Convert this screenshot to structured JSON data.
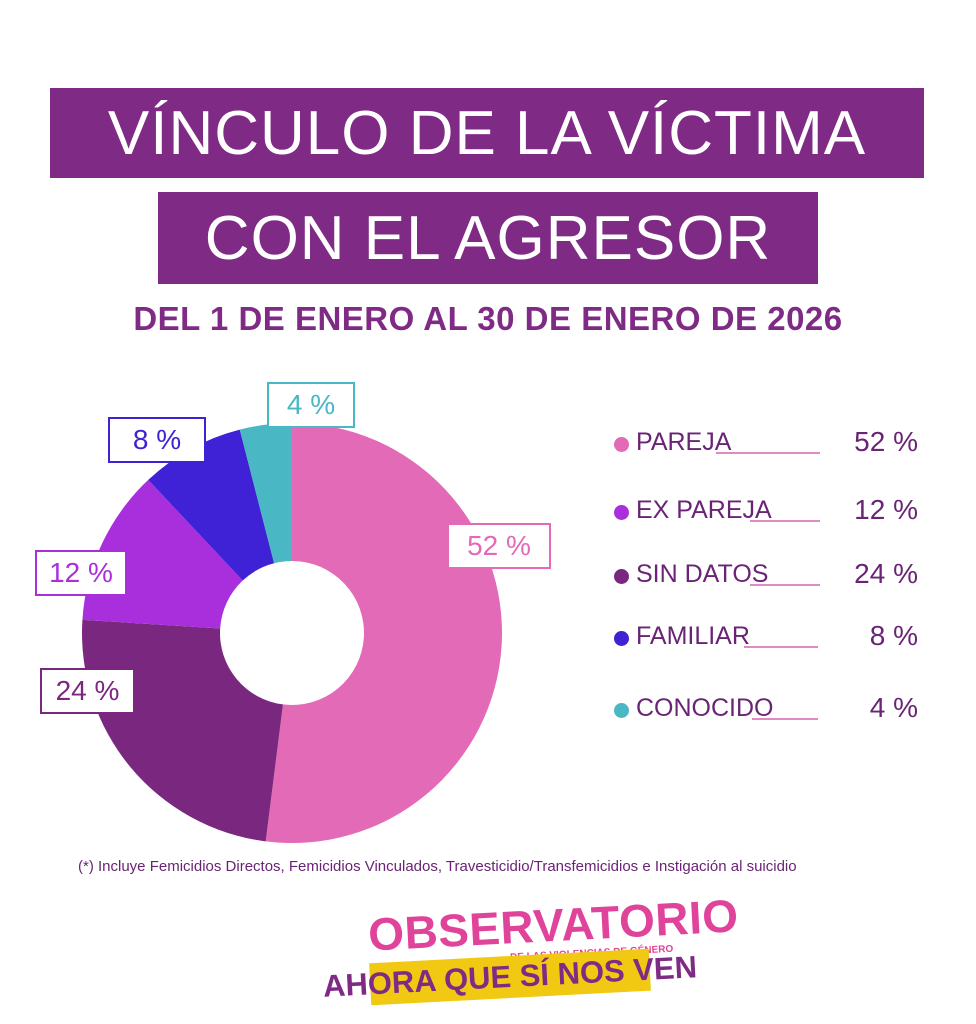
{
  "header": {
    "title_line1": "VÍNCULO DE LA VÍCTIMA",
    "title_line2": "CON EL AGRESOR",
    "subtitle": "DEL 1 DE ENERO AL 30 DE ENERO DE 2026"
  },
  "chart_data": {
    "type": "pie",
    "donut": true,
    "title": "VÍNCULO DE LA VÍCTIMA CON EL AGRESOR",
    "subtitle": "DEL 1 DE ENERO AL 30 DE ENERO DE 2026",
    "legend_position": "right",
    "categories": [
      "PAREJA",
      "EX PAREJA",
      "SIN DATOS",
      "FAMILIAR",
      "CONOCIDO"
    ],
    "values": [
      52,
      12,
      24,
      8,
      4
    ],
    "value_labels": [
      "52 %",
      "12 %",
      "24 %",
      "8 %",
      "4 %"
    ],
    "colors": [
      "#e36ab7",
      "#a92fdc",
      "#7a277f",
      "#3f21d6",
      "#49b8c4"
    ]
  },
  "footnote": "(*) Incluye Femicidios Directos, Femicidios Vinculados,  Travesticidio/Transfemicidios e Instigación al suicidio",
  "logo": {
    "main": "OBSERVATORIO",
    "sub": "DE LAS VIOLENCIAS DE GÉNERO",
    "band": "AHORA QUE SÍ NOS VEN"
  },
  "colors": {
    "brand_purple": "#7f2a84",
    "accent_pink": "#e0449a",
    "band_yellow": "#f2c912",
    "legend_line": "#e08ac4"
  }
}
